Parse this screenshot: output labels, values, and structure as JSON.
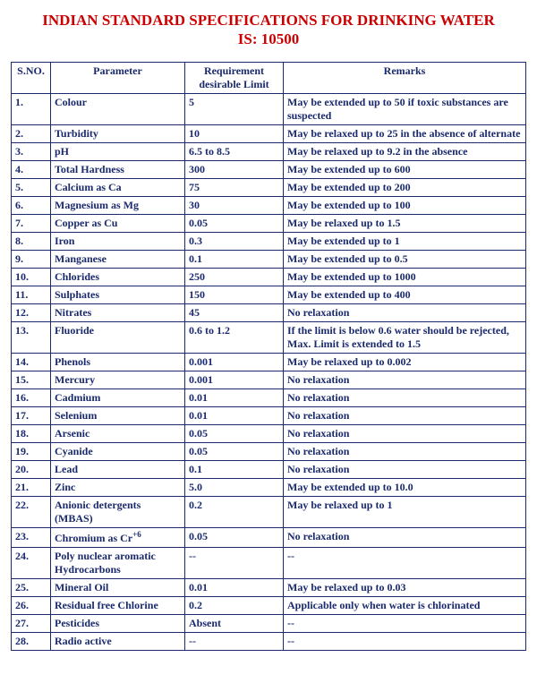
{
  "title_line1": "INDIAN STANDARD SPECIFICATIONS FOR DRINKING WATER",
  "title_line2": "IS: 10500",
  "headers": {
    "sno": "S.NO.",
    "parameter": "Parameter",
    "requirement": "Requirement desirable Limit",
    "remarks": "Remarks"
  },
  "rows": [
    {
      "sno": "1.",
      "parameter": "Colour",
      "req": "5",
      "rem": "May be extended up to 50 if toxic substances are suspected"
    },
    {
      "sno": "2.",
      "parameter": "Turbidity",
      "req": "10",
      "rem": "May be relaxed up to 25 in the absence of alternate"
    },
    {
      "sno": "3.",
      "parameter": "pH",
      "req": "6.5 to 8.5",
      "rem": "May be relaxed up to 9.2 in the absence"
    },
    {
      "sno": "4.",
      "parameter": "Total Hardness",
      "req": "300",
      "rem": "May be extended up to 600"
    },
    {
      "sno": "5.",
      "parameter": "Calcium as Ca",
      "req": "75",
      "rem": "May be extended up to 200"
    },
    {
      "sno": "6.",
      "parameter": "Magnesium as Mg",
      "req": "30",
      "rem": "May be extended up to 100"
    },
    {
      "sno": "7.",
      "parameter": "Copper as Cu",
      "req": "0.05",
      "rem": "May be relaxed up to 1.5"
    },
    {
      "sno": "8.",
      "parameter": "Iron",
      "req": "0.3",
      "rem": "May be extended up to 1"
    },
    {
      "sno": "9.",
      "parameter": "Manganese",
      "req": "0.1",
      "rem": "May be extended up to 0.5"
    },
    {
      "sno": "10.",
      "parameter": "Chlorides",
      "req": "250",
      "rem": "May be extended up to 1000"
    },
    {
      "sno": "11.",
      "parameter": "Sulphates",
      "req": "150",
      "rem": "May be extended up to 400"
    },
    {
      "sno": "12.",
      "parameter": "Nitrates",
      "req": "45",
      "rem": "No relaxation"
    },
    {
      "sno": "13.",
      "parameter": "Fluoride",
      "req": "0.6 to 1.2",
      "rem": "If the limit is below 0.6 water should be rejected, Max. Limit is extended to 1.5"
    },
    {
      "sno": "14.",
      "parameter": "Phenols",
      "req": "0.001",
      "rem": "May be relaxed up to 0.002"
    },
    {
      "sno": "15.",
      "parameter": "Mercury",
      "req": "0.001",
      "rem": "No relaxation"
    },
    {
      "sno": "16.",
      "parameter": "Cadmium",
      "req": "0.01",
      "rem": "No relaxation"
    },
    {
      "sno": "17.",
      "parameter": "Selenium",
      "req": "0.01",
      "rem": "No relaxation"
    },
    {
      "sno": "18.",
      "parameter": "Arsenic",
      "req": "0.05",
      "rem": "No relaxation"
    },
    {
      "sno": "19.",
      "parameter": "Cyanide",
      "req": "0.05",
      "rem": "No relaxation"
    },
    {
      "sno": "20.",
      "parameter": "Lead",
      "req": "0.1",
      "rem": "No relaxation"
    },
    {
      "sno": "21.",
      "parameter": "Zinc",
      "req": "5.0",
      "rem": "May be extended up to 10.0"
    },
    {
      "sno": "22.",
      "parameter": "Anionic detergents (MBAS)",
      "req": "0.2",
      "rem": "May be relaxed up to 1"
    },
    {
      "sno": "23.",
      "parameter": "Chromium as Cr",
      "req": "0.05",
      "rem": "No relaxation",
      "sup": "+6"
    },
    {
      "sno": "24.",
      "parameter": "Poly nuclear aromatic Hydrocarbons",
      "req": "--",
      "rem": "--"
    },
    {
      "sno": "25.",
      "parameter": "Mineral Oil",
      "req": "0.01",
      "rem": "May be relaxed up to 0.03"
    },
    {
      "sno": "26.",
      "parameter": "Residual free Chlorine",
      "req": "0.2",
      "rem": "Applicable only when water is chlorinated"
    },
    {
      "sno": "27.",
      "parameter": "Pesticides",
      "req": "Absent",
      "rem": "--"
    },
    {
      "sno": "28.",
      "parameter": "Radio active",
      "req": "--",
      "rem": "--"
    }
  ],
  "colors": {
    "title": "#cc0000",
    "table": "#1a2a6c",
    "background": "#ffffff"
  }
}
